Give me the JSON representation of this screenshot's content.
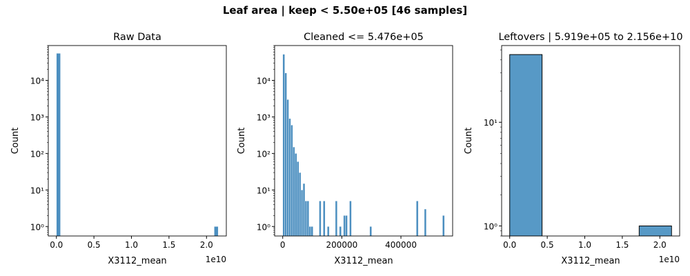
{
  "title": "Leaf area | keep < 5.50e+05 [46 samples]",
  "chart_data": [
    {
      "type": "histogram",
      "title": "Raw Data",
      "xlabel": "X3112_mean",
      "ylabel": "Count",
      "x_offset_label": "1e10",
      "log_y": true,
      "color": "#4c8fc0",
      "edgecolor": "#ffffff",
      "bins": [
        0,
        539000000,
        1078000000,
        1617000000,
        2156000000,
        2695000000,
        3234000000,
        3773000000,
        4312000000,
        4851000000,
        5390000000,
        5929000000,
        6468000000,
        7007000000,
        7546000000,
        8085000000,
        8624000000,
        9163000000,
        9702000000,
        10241000000,
        10780000000,
        11319000000,
        11858000000,
        12397000000,
        12936000000,
        13475000000,
        14014000000,
        14553000000,
        15092000000,
        15631000000,
        16170000000,
        16709000000,
        17248000000,
        17787000000,
        18326000000,
        18865000000,
        19404000000,
        19943000000,
        20482000000,
        21021000000,
        21560000000
      ],
      "values": [
        55000,
        0,
        0,
        0,
        0,
        0,
        0,
        0,
        0,
        0,
        0,
        0,
        0,
        0,
        0,
        0,
        0,
        0,
        0,
        0,
        0,
        0,
        0,
        0,
        0,
        0,
        0,
        0,
        0,
        0,
        0,
        0,
        0,
        0,
        0,
        0,
        0,
        0,
        0,
        1
      ],
      "xlim": [
        -1080000000,
        22640000000
      ],
      "xticks": [
        {
          "value": 0,
          "label": "0.0"
        },
        {
          "value": 5000000000,
          "label": "0.5"
        },
        {
          "value": 10000000000,
          "label": "1.0"
        },
        {
          "value": 15000000000,
          "label": "1.5"
        },
        {
          "value": 20000000000,
          "label": "2.0"
        }
      ],
      "ylim": [
        0.55,
        90000
      ],
      "yticks": [
        {
          "value": 1,
          "label": "10⁰"
        },
        {
          "value": 10,
          "label": "10¹"
        },
        {
          "value": 100,
          "label": "10²"
        },
        {
          "value": 1000,
          "label": "10³"
        },
        {
          "value": 10000,
          "label": "10⁴"
        }
      ]
    },
    {
      "type": "histogram",
      "title": "Cleaned <= 5.476e+05",
      "xlabel": "X3112_mean",
      "ylabel": "Count",
      "log_y": true,
      "color": "#4c8fc0",
      "edgecolor": "#ffffff",
      "bins": [
        0,
        6845,
        13690,
        20535,
        27380,
        34225,
        41070,
        47915,
        54760,
        61605,
        68450,
        75295,
        82140,
        88985,
        95830,
        102675,
        109520,
        116365,
        123210,
        130055,
        136900,
        143745,
        150590,
        157435,
        164280,
        171125,
        177970,
        184815,
        191660,
        198505,
        205350,
        212195,
        219040,
        225885,
        232730,
        239575,
        246420,
        253265,
        260110,
        266955,
        273800,
        280645,
        287490,
        294335,
        301180,
        308025,
        314870,
        321715,
        328560,
        335405,
        342250,
        349095,
        355940,
        362785,
        369630,
        376475,
        383320,
        390165,
        397010,
        403855,
        410700,
        417545,
        424390,
        431235,
        438080,
        444925,
        451770,
        458615,
        465460,
        472305,
        479150,
        485995,
        492840,
        499685,
        506530,
        513375,
        520220,
        527065,
        533910,
        540755,
        547600
      ],
      "values": [
        52000,
        16000,
        3000,
        900,
        600,
        150,
        100,
        60,
        30,
        10,
        15,
        5,
        5,
        1,
        1,
        0,
        0,
        0,
        5,
        0,
        5,
        0,
        1,
        0,
        0,
        0,
        5,
        0,
        1,
        0,
        2,
        2,
        0,
        5,
        0,
        0,
        0,
        0,
        0,
        0,
        0,
        0,
        0,
        1,
        0,
        0,
        0,
        0,
        0,
        0,
        0,
        0,
        0,
        0,
        0,
        0,
        0,
        0,
        0,
        0,
        0,
        0,
        0,
        0,
        0,
        0,
        5,
        0,
        0,
        0,
        3,
        0,
        0,
        0,
        0,
        0,
        0,
        0,
        0,
        2
      ],
      "xlim": [
        -27380,
        575000
      ],
      "xticks": [
        0,
        200000,
        400000
      ],
      "ylim": [
        0.55,
        90000
      ],
      "yticks": [
        {
          "value": 1,
          "label": "10⁰"
        },
        {
          "value": 10,
          "label": "10¹"
        },
        {
          "value": 100,
          "label": "10²"
        },
        {
          "value": 1000,
          "label": "10³"
        },
        {
          "value": 10000,
          "label": "10⁴"
        }
      ]
    },
    {
      "type": "histogram",
      "title": "Leftovers | 5.919e+05 to 2.156e+10",
      "xlabel": "X3112_mean",
      "ylabel": "Count",
      "x_offset_label": "1e10",
      "log_y": true,
      "color": "#5799c6",
      "edgecolor": "#000000",
      "bins": [
        591900,
        4312473520,
        8624355140,
        12936236760,
        17248118380,
        21560000000
      ],
      "values": [
        45,
        0,
        0,
        0,
        1
      ],
      "xlim": [
        -1077000000,
        22640000000
      ],
      "xticks": [
        {
          "value": 0,
          "label": "0.0"
        },
        {
          "value": 5000000000,
          "label": "0.5"
        },
        {
          "value": 10000000000,
          "label": "1.0"
        },
        {
          "value": 15000000000,
          "label": "1.5"
        },
        {
          "value": 20000000000,
          "label": "2.0"
        }
      ],
      "ylim": [
        0.8,
        55
      ],
      "yticks": [
        {
          "value": 1,
          "label": "10⁰"
        },
        {
          "value": 10,
          "label": "10¹"
        }
      ]
    }
  ]
}
